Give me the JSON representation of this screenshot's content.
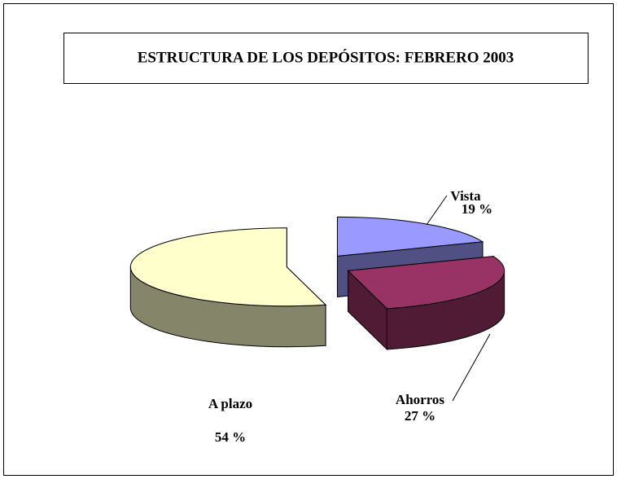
{
  "chart_data": {
    "type": "pie",
    "title": "ESTRUCTURA DE LOS DEPÓSITOS: FEBRERO 2003",
    "categories": [
      "Vista",
      "Ahorros",
      "A plazo"
    ],
    "values": [
      19,
      27,
      54
    ],
    "value_labels": [
      "19 %",
      "27 %",
      "54 %"
    ],
    "colors": [
      "#9999ff",
      "#993366",
      "#ffffcc"
    ]
  }
}
